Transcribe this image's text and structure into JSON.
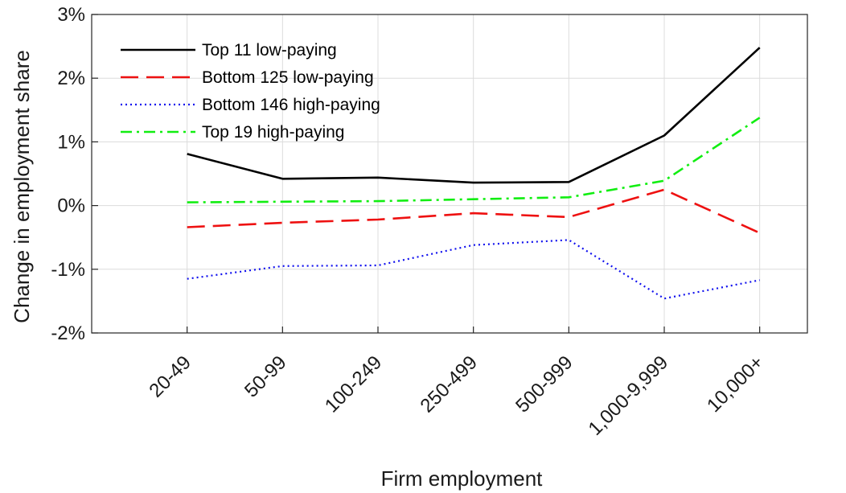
{
  "chart_data": {
    "type": "line",
    "xlabel": "Firm employment",
    "ylabel": "Change in employment share",
    "categories": [
      "20-49",
      "50-99",
      "100-249",
      "250-499",
      "500-999",
      "1,000-9,999",
      "10,000+"
    ],
    "ylim": [
      -2,
      3
    ],
    "yticks": [
      -2,
      -1,
      0,
      1,
      2,
      3
    ],
    "ytick_labels": [
      "-2%",
      "-1%",
      "0%",
      "1%",
      "2%",
      "3%"
    ],
    "grid": true,
    "legend_position": "top-left",
    "series": [
      {
        "name": "Top 11 low-paying",
        "color": "#000000",
        "dash": "solid",
        "values": [
          0.81,
          0.42,
          0.44,
          0.36,
          0.37,
          1.1,
          2.48
        ]
      },
      {
        "name": "Bottom 125 low-paying",
        "color": "#ee1111",
        "dash": "dashed",
        "values": [
          -0.34,
          -0.27,
          -0.22,
          -0.12,
          -0.18,
          0.25,
          -0.43
        ]
      },
      {
        "name": "Bottom 146 high-paying",
        "color": "#1111ee",
        "dash": "dotted",
        "values": [
          -1.15,
          -0.95,
          -0.94,
          -0.62,
          -0.54,
          -1.46,
          -1.17
        ]
      },
      {
        "name": "Top 19 high-paying",
        "color": "#11ee11",
        "dash": "dashdot",
        "values": [
          0.05,
          0.06,
          0.07,
          0.1,
          0.13,
          0.39,
          1.38
        ]
      }
    ]
  }
}
